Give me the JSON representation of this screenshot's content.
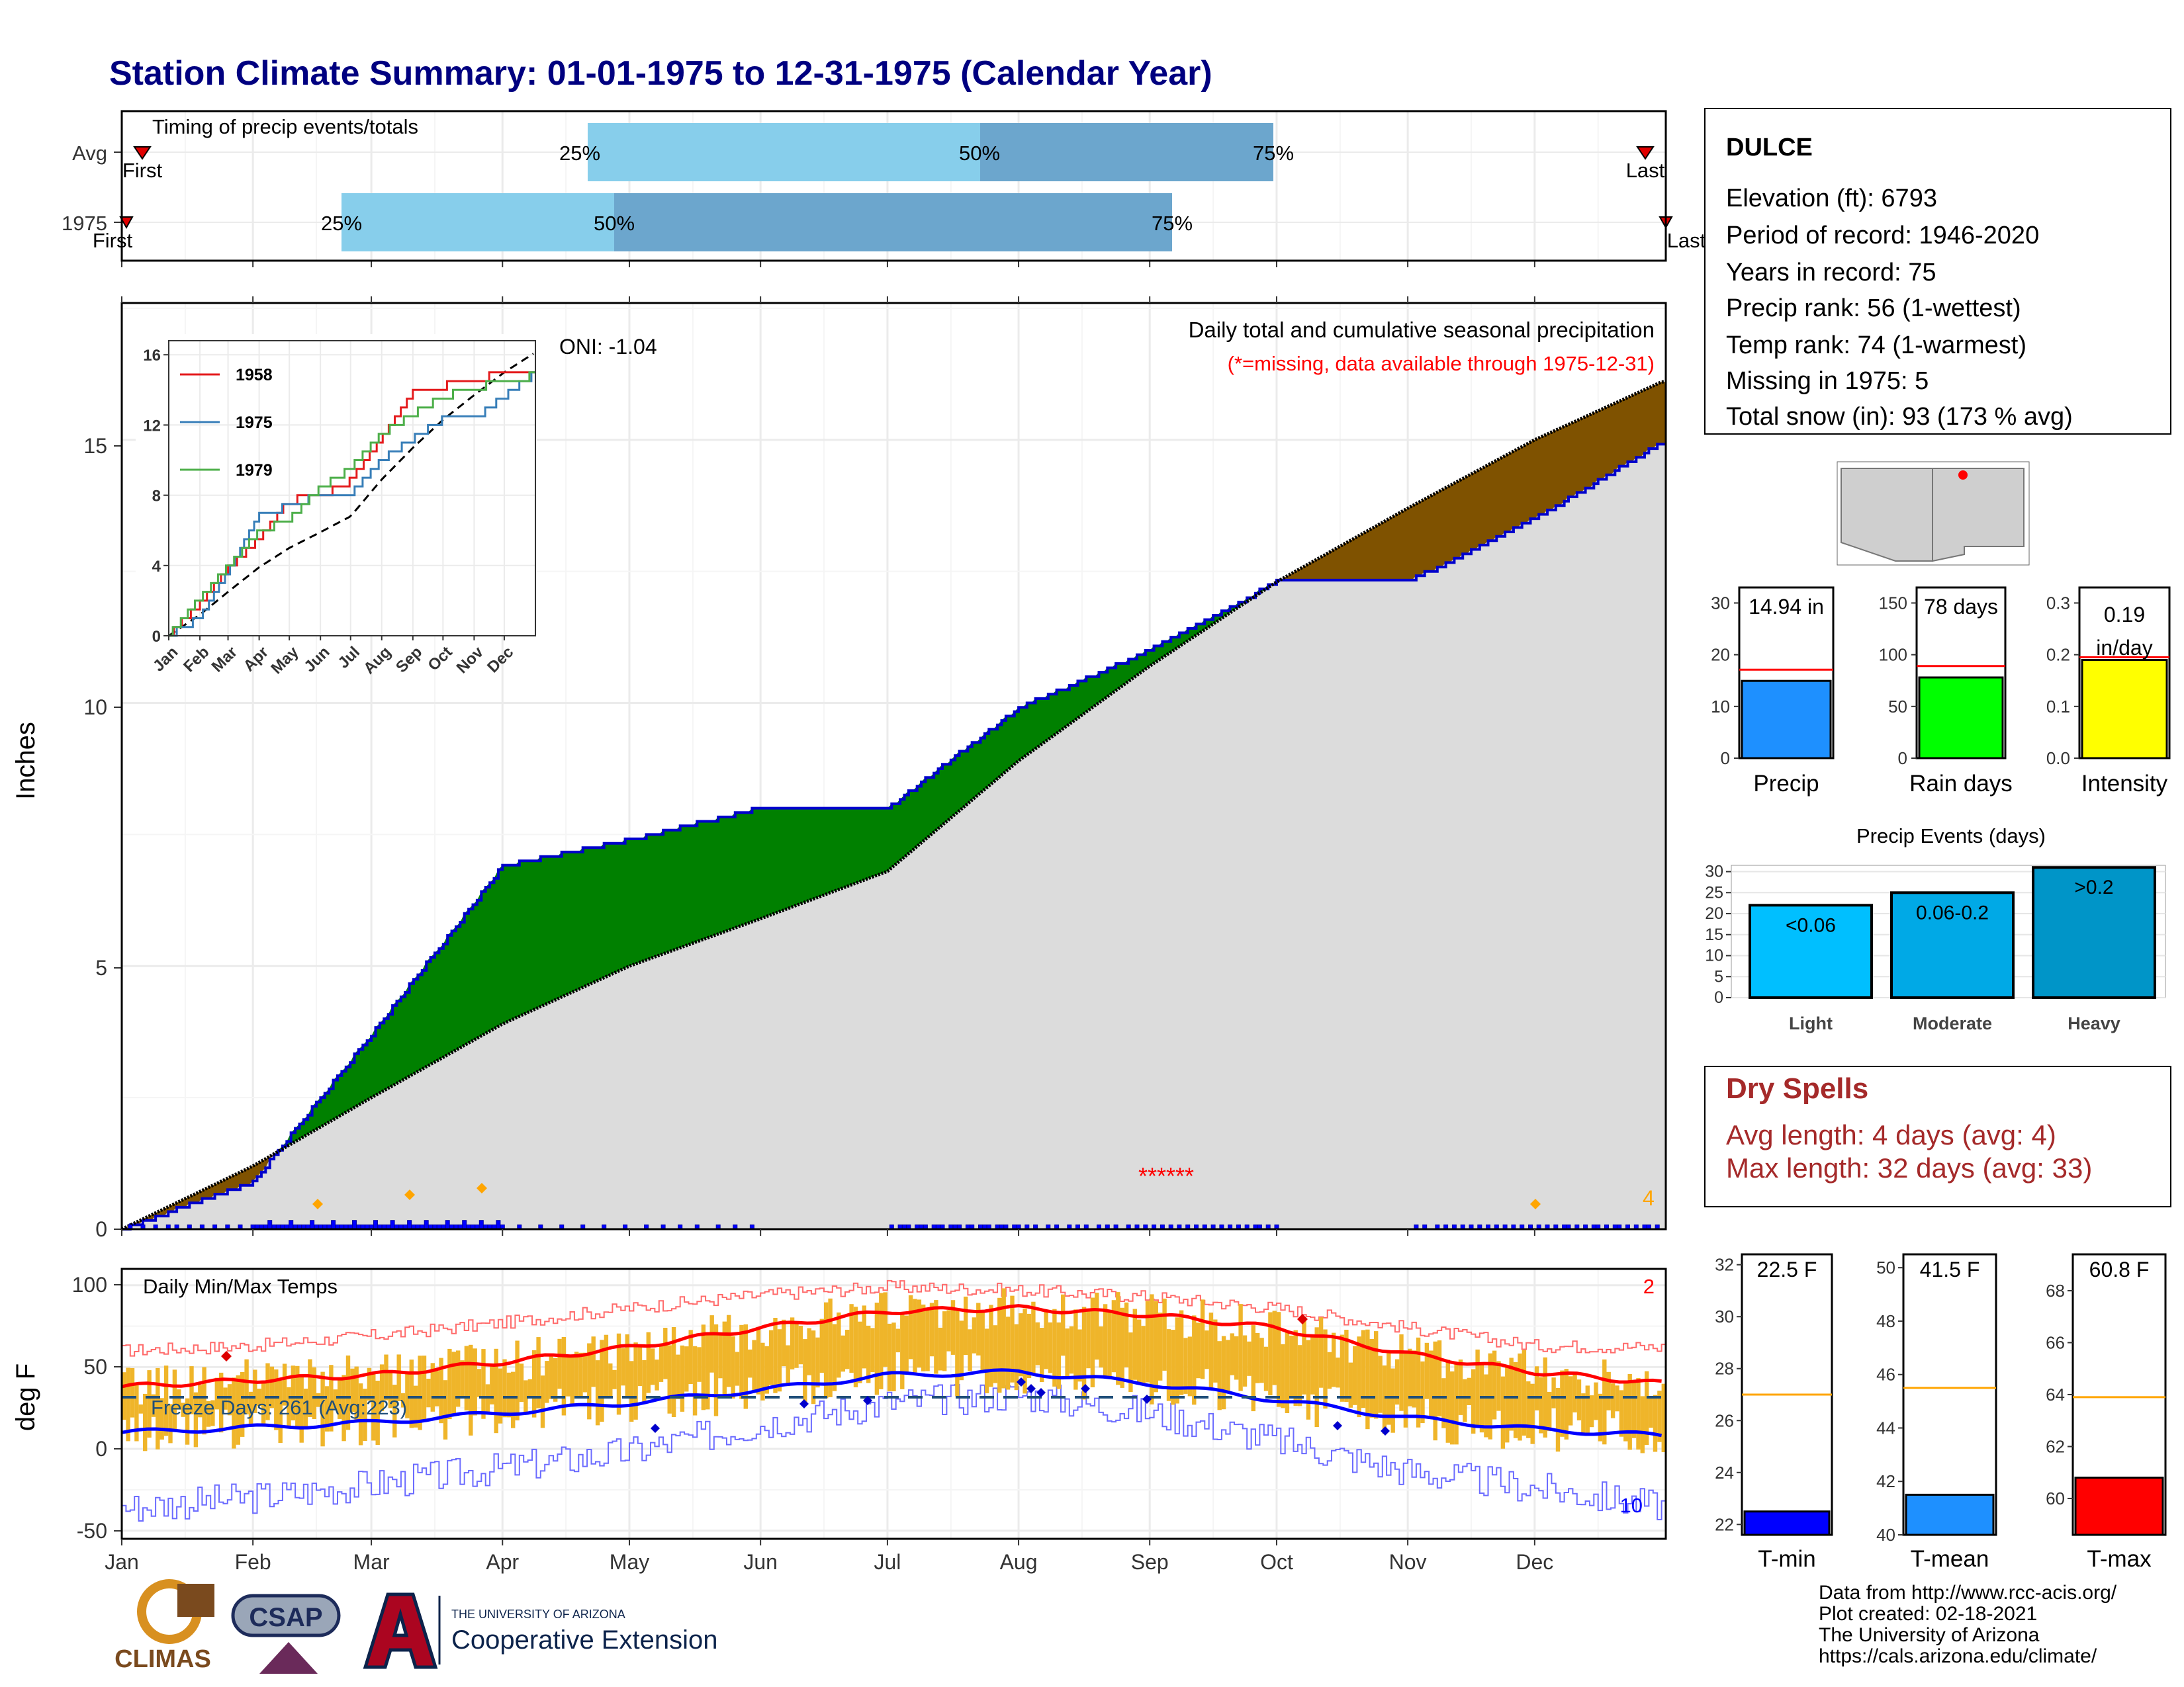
{
  "title": "Station Climate Summary: 01-01-1975 to 12-31-1975 (Calendar Year)",
  "timing_panel": {
    "label": "Timing of precip events/totals",
    "rows": [
      {
        "name": "Avg",
        "first_label": "First",
        "last_label": "Last",
        "p25": "25%",
        "p50": "50%",
        "p75": "75%"
      },
      {
        "name": "1975",
        "first_label": "First",
        "last_label": "Last",
        "p25": "25%",
        "p50": "50%",
        "p75": "75%"
      }
    ]
  },
  "precip_panel": {
    "ylabel": "Inches",
    "yticks": [
      "0",
      "5",
      "10",
      "15"
    ],
    "oni": "ONI: -1.04",
    "title": "Daily total and cumulative seasonal precipitation",
    "missing_note": "(*=missing, data available through 1975-12-31)",
    "count_label": "4"
  },
  "inset": {
    "yticks": [
      "0",
      "4",
      "8",
      "12",
      "16"
    ],
    "months": [
      "Jan",
      "Feb",
      "Mar",
      "Apr",
      "May",
      "Jun",
      "Jul",
      "Aug",
      "Sep",
      "Oct",
      "Nov",
      "Dec"
    ],
    "legend": [
      "1958",
      "1975",
      "1979"
    ]
  },
  "temp_panel": {
    "ylabel": "deg F",
    "yticks": [
      "-50",
      "0",
      "50",
      "100"
    ],
    "title": "Daily Min/Max Temps",
    "freeze": "Freeze Days: 261 (Avg:223)",
    "max_count": "2",
    "min_count": "10"
  },
  "months": [
    "Jan",
    "Feb",
    "Mar",
    "Apr",
    "May",
    "Jun",
    "Jul",
    "Aug",
    "Sep",
    "Oct",
    "Nov",
    "Dec"
  ],
  "station": {
    "name": "DULCE",
    "lines": [
      "Elevation (ft): 6793",
      "Period of record: 1946-2020",
      "Years in record: 75",
      "Precip rank: 56 (1-wettest)",
      "Temp rank: 74 (1-warmest)",
      "Missing in 1975: 5",
      "Total snow (in): 93 (173 % avg)"
    ]
  },
  "summary_bars": [
    {
      "label": "Precip",
      "value_label": "14.94 in",
      "value": 14.94,
      "avg": 17.1,
      "ymax": 33,
      "ticks": [
        "0",
        "10",
        "20",
        "30"
      ],
      "color": "#1e90ff"
    },
    {
      "label": "Rain days",
      "value_label": "78 days",
      "value": 78,
      "avg": 89,
      "ymax": 165,
      "ticks": [
        "0",
        "50",
        "100",
        "150"
      ],
      "color": "#00ff00"
    },
    {
      "label": "Intensity",
      "value_label": "0.19 in/day",
      "value": 0.19,
      "avg": 0.195,
      "ymax": 0.33,
      "ticks": [
        "0.0",
        "0.1",
        "0.2",
        "0.3"
      ],
      "color": "#ffff00"
    }
  ],
  "precip_events": {
    "title": "Precip Events (days)",
    "ticks": [
      "0",
      "5",
      "10",
      "15",
      "20",
      "25",
      "30"
    ],
    "bars": [
      {
        "label": "Light",
        "range": "<0.06",
        "value": 22,
        "color": "#00bfff"
      },
      {
        "label": "Moderate",
        "range": "0.06-0.2",
        "value": 25,
        "color": "#00a9e6"
      },
      {
        "label": "Heavy",
        "range": ">0.2",
        "value": 31,
        "color": "#0095c8"
      }
    ]
  },
  "dry_spells": {
    "title": "Dry Spells",
    "avg": "Avg length: 4 days (avg: 4)",
    "max": "Max length: 32 days (avg: 33)"
  },
  "temp_bars": [
    {
      "label": "T-min",
      "value_label": "22.5 F",
      "value": 22.5,
      "avg": 27.0,
      "ymin": 21.6,
      "ymax": 32.4,
      "ticks": [
        "22",
        "24",
        "26",
        "28",
        "30",
        "32"
      ],
      "color": "#0000ff"
    },
    {
      "label": "T-mean",
      "value_label": "41.5 F",
      "value": 41.5,
      "avg": 45.5,
      "ymin": 40.0,
      "ymax": 50.5,
      "ticks": [
        "40",
        "42",
        "44",
        "46",
        "48",
        "50"
      ],
      "color": "#1e90ff"
    },
    {
      "label": "T-max",
      "value_label": "60.8 F",
      "value": 60.8,
      "avg": 63.9,
      "ymin": 58.6,
      "ymax": 69.4,
      "ticks": [
        "60",
        "62",
        "64",
        "66",
        "68"
      ],
      "color": "#ff0000"
    }
  ],
  "logos": {
    "climas": "CLIMAS",
    "csap": "CSAP",
    "ua_small": "THE UNIVERSITY OF ARIZONA",
    "ua_big": "Cooperative Extension"
  },
  "credits": [
    "Data from http://www.rcc-acis.org/",
    "Plot created: 02-18-2021",
    "The University of Arizona",
    "https://cals.arizona.edu/climate/"
  ],
  "chart_data": [
    {
      "type": "bar",
      "title": "Timing of precip events/totals",
      "categories": [
        "Avg",
        "1975"
      ],
      "series": [
        {
          "name": "25%",
          "values": [
            "Apr 28",
            "Feb 20"
          ]
        },
        {
          "name": "50%",
          "values": [
            "Jul 30",
            "Apr 26"
          ]
        },
        {
          "name": "75%",
          "values": [
            "Sep 25",
            "Sep 8"
          ]
        }
      ]
    },
    {
      "type": "area",
      "title": "Daily total and cumulative seasonal precipitation",
      "ylabel": "Inches",
      "ylim": [
        0,
        17.6
      ],
      "x": [
        "Jan 1",
        "Feb 1",
        "Mar 1",
        "Apr 1",
        "May 1",
        "Jun 1",
        "Jul 1",
        "Aug 1",
        "Sep 1",
        "Oct 1",
        "Nov 1",
        "Dec 1",
        "Dec 31"
      ],
      "series": [
        {
          "name": "1975 cumulative",
          "values": [
            0.0,
            0.9,
            3.7,
            6.9,
            7.4,
            8.0,
            8.0,
            9.9,
            11.0,
            12.3,
            12.3,
            13.5,
            14.94
          ]
        },
        {
          "name": "average cumulative",
          "values": [
            0.0,
            1.2,
            2.5,
            3.9,
            5.0,
            5.9,
            6.8,
            8.9,
            10.7,
            12.3,
            13.7,
            15.0,
            16.1
          ]
        }
      ]
    },
    {
      "type": "line",
      "x": [
        "Jan 1",
        "Feb 1",
        "Mar 1",
        "Apr 1",
        "May 1",
        "Jun 1",
        "Jul 1",
        "Aug 1",
        "Sep 1",
        "Oct 1",
        "Nov 1",
        "Dec 1",
        "Dec 31"
      ],
      "ylim": [
        0,
        16
      ],
      "series": [
        {
          "name": "1958",
          "values": [
            0.0,
            1.8,
            3.8,
            5.5,
            7.7,
            7.9,
            8.8,
            11.2,
            13.8,
            14.2,
            14.7,
            14.8,
            14.8
          ]
        },
        {
          "name": "1975",
          "values": [
            0.0,
            1.0,
            3.6,
            6.8,
            7.4,
            8.0,
            8.0,
            10.0,
            11.2,
            12.3,
            12.3,
            13.6,
            14.9
          ]
        },
        {
          "name": "1979",
          "values": [
            0.0,
            2.1,
            3.9,
            5.9,
            6.6,
            8.4,
            9.5,
            11.5,
            12.6,
            13.6,
            14.1,
            14.5,
            14.8
          ]
        },
        {
          "name": "average",
          "values": [
            0.0,
            1.2,
            2.5,
            3.9,
            5.0,
            5.9,
            6.8,
            8.9,
            10.7,
            12.3,
            13.7,
            15.0,
            16.1
          ]
        }
      ]
    },
    {
      "type": "line",
      "title": "Daily Min/Max Temps",
      "ylabel": "deg F",
      "ylim": [
        -55,
        110
      ],
      "x": [
        "Jan 1",
        "Feb 1",
        "Mar 1",
        "Apr 1",
        "May 1",
        "Jun 1",
        "Jul 1",
        "Aug 1",
        "Sep 1",
        "Oct 1",
        "Nov 1",
        "Dec 1",
        "Dec 31"
      ],
      "series": [
        {
          "name": "avg max",
          "values": [
            38,
            42,
            45,
            53,
            62,
            74,
            84,
            86,
            82,
            74,
            58,
            47,
            40
          ]
        },
        {
          "name": "avg min",
          "values": [
            10,
            13,
            16,
            22,
            28,
            36,
            45,
            47,
            40,
            30,
            19,
            12,
            8
          ]
        },
        {
          "name": "record max",
          "values": [
            60,
            63,
            69,
            77,
            86,
            94,
            99,
            97,
            93,
            86,
            74,
            63,
            62
          ]
        },
        {
          "name": "record min",
          "values": [
            -36,
            -30,
            -22,
            -12,
            -2,
            15,
            28,
            33,
            22,
            5,
            -14,
            -24,
            -35
          ]
        },
        {
          "name": "freeze threshold",
          "values": [
            32,
            32,
            32,
            32,
            32,
            32,
            32,
            32,
            32,
            32,
            32,
            32,
            32
          ]
        }
      ]
    }
  ]
}
